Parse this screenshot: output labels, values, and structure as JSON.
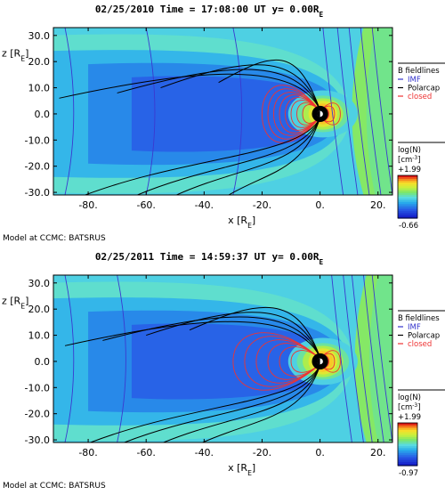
{
  "chart_data": [
    {
      "type": "heatmap",
      "title": "02/25/2010 Time = 17:08:00 UT y= 0.00R",
      "title_sub": "E",
      "xlabel": "x [R",
      "xlabel_sub": "E",
      "xlabel_end": "]",
      "ylabel": "z [R",
      "ylabel_sub": "E",
      "ylabel_end": "]",
      "xlim": [
        -92,
        25
      ],
      "ylim": [
        -31,
        33
      ],
      "xticks": [
        -80,
        -60,
        -40,
        -20,
        0,
        20
      ],
      "xtick_labels": [
        "-80.",
        "-60.",
        "-40.",
        "-20.",
        "0.",
        "20."
      ],
      "yticks": [
        30,
        20,
        10,
        0,
        -10,
        -20,
        -30
      ],
      "ytick_labels": [
        "30.0",
        "20.0",
        "10.0",
        "0.0",
        "-10.0",
        "-20.0",
        "-30.0"
      ],
      "legend": {
        "title": "B fieldlines",
        "entries": [
          {
            "label": "IMF",
            "color": "#3333cc"
          },
          {
            "label": "Polarcap",
            "color": "#000000"
          },
          {
            "label": "closed",
            "color": "#ee3333"
          }
        ]
      },
      "colorbar": {
        "title": "log(N)",
        "unit": "[cm",
        "unit_exp": "-3",
        "unit_end": "]",
        "max_label": "+1.99",
        "min_label": "-0.66",
        "max": 1.99,
        "min": -0.66
      },
      "footer": "Model at CCMC: BATSRUS",
      "field_lines": {
        "closed_lengths": [
          6,
          8,
          10,
          12,
          14,
          16,
          18,
          20
        ],
        "closed_halfheights": [
          5,
          6,
          7.5,
          9,
          10.5,
          12,
          14,
          16
        ],
        "polarcap_tails": [
          -90,
          -70,
          -55,
          -35
        ],
        "imf_x": [
          -88,
          -60,
          -30,
          5,
          10,
          14,
          18,
          22
        ]
      },
      "magnetopause_x": 9,
      "bowshock_x": 14
    },
    {
      "type": "heatmap",
      "title": "02/25/2011 Time = 14:59:37 UT y= 0.00R",
      "title_sub": "E",
      "xlabel": "x [R",
      "xlabel_sub": "E",
      "xlabel_end": "]",
      "ylabel": "z [R",
      "ylabel_sub": "E",
      "ylabel_end": "]",
      "xlim": [
        -92,
        25
      ],
      "ylim": [
        -31,
        33
      ],
      "xticks": [
        -80,
        -60,
        -40,
        -20,
        0,
        20
      ],
      "xtick_labels": [
        "-80.",
        "-60.",
        "-40.",
        "-20.",
        "0.",
        "20."
      ],
      "yticks": [
        30,
        20,
        10,
        0,
        -10,
        -20,
        -30
      ],
      "ytick_labels": [
        "30.0",
        "20.0",
        "10.0",
        "0.0",
        "-10.0",
        "-20.0",
        "-30.0"
      ],
      "legend": {
        "title": "B fieldlines",
        "entries": [
          {
            "label": "IMF",
            "color": "#3333cc"
          },
          {
            "label": "Polarcap",
            "color": "#000000"
          },
          {
            "label": "closed",
            "color": "#ee3333"
          }
        ]
      },
      "colorbar": {
        "title": "log(N)",
        "unit": "[cm",
        "unit_exp": "-3",
        "unit_end": "]",
        "max_label": "+1.99",
        "min_label": "-0.97",
        "max": 1.99,
        "min": -0.97
      },
      "footer": "Model at CCMC: BATSRUS",
      "field_lines": {
        "closed_lengths": [
          10,
          14,
          18,
          22,
          26,
          30
        ],
        "closed_halfheights": [
          6,
          8,
          10,
          12,
          14,
          16
        ],
        "polarcap_tails": [
          -88,
          -75,
          -60,
          -45
        ],
        "imf_x": [
          -88,
          -70,
          8,
          12,
          15,
          19,
          22
        ]
      },
      "magnetopause_x": 10,
      "bowshock_x": 15
    }
  ]
}
